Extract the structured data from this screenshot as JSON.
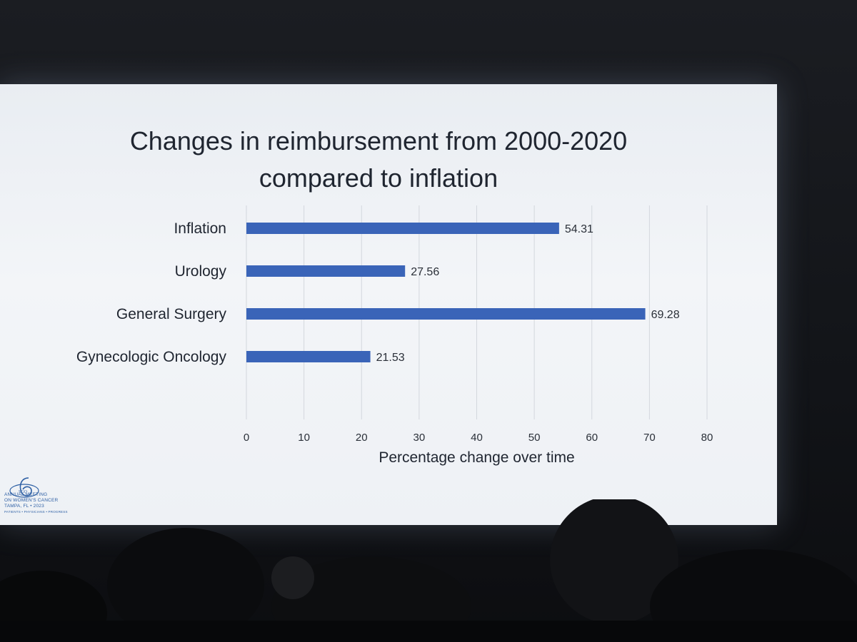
{
  "slide": {
    "title_line1": "Changes in reimbursement from 2000-2020",
    "title_line2": "compared to inflation"
  },
  "logo": {
    "mark": "SGO",
    "line1": "ANNUAL MEETING",
    "line2": "ON WOMEN'S CANCER",
    "line3": "TAMPA, FL • 2023",
    "line4": "PATIENTS • PHYSICIANS • PROGRESS"
  },
  "chart_data": {
    "type": "bar",
    "orientation": "horizontal",
    "categories": [
      "Inflation",
      "Urology",
      "General Surgery",
      "Gynecologic Oncology"
    ],
    "values": [
      54.31,
      27.56,
      69.28,
      21.53
    ],
    "value_labels": [
      "54.31",
      "27.56",
      "69.28",
      "21.53"
    ],
    "xlabel": "Percentage change over time",
    "xlim": [
      0,
      80
    ],
    "xticks": [
      "0",
      "10",
      "20",
      "30",
      "40",
      "50",
      "60",
      "70",
      "80"
    ],
    "grid": true,
    "bar_color": "#3a64b8"
  }
}
